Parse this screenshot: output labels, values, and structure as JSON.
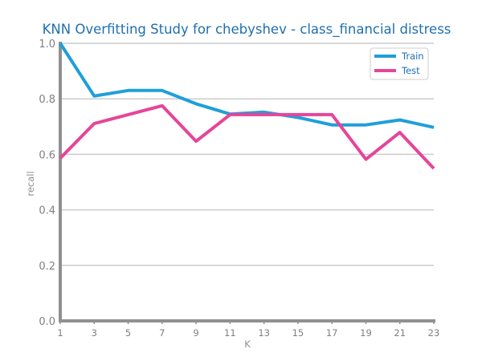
{
  "chart_data": {
    "type": "line",
    "title": "KNN Overfitting Study for chebyshev - class_financial distress",
    "xlabel": "K",
    "ylabel": "recall",
    "x": [
      1,
      3,
      5,
      7,
      9,
      11,
      13,
      15,
      17,
      19,
      21,
      23
    ],
    "xlim": [
      1,
      23
    ],
    "ylim": [
      0.0,
      1.0
    ],
    "yticks": [
      "0.0",
      "0.2",
      "0.4",
      "0.6",
      "0.8",
      "1.0"
    ],
    "grid": "horizontal",
    "legend": "top-right",
    "series": [
      {
        "name": "Train",
        "color": "#1f9fd9",
        "values": [
          1.0,
          0.81,
          0.83,
          0.83,
          0.782,
          0.745,
          0.752,
          0.733,
          0.706,
          0.706,
          0.724,
          0.697
        ]
      },
      {
        "name": "Test",
        "color": "#e5459a",
        "values": [
          0.586,
          0.711,
          0.743,
          0.775,
          0.647,
          0.743,
          0.743,
          0.743,
          0.743,
          0.582,
          0.679,
          0.549
        ]
      }
    ]
  }
}
